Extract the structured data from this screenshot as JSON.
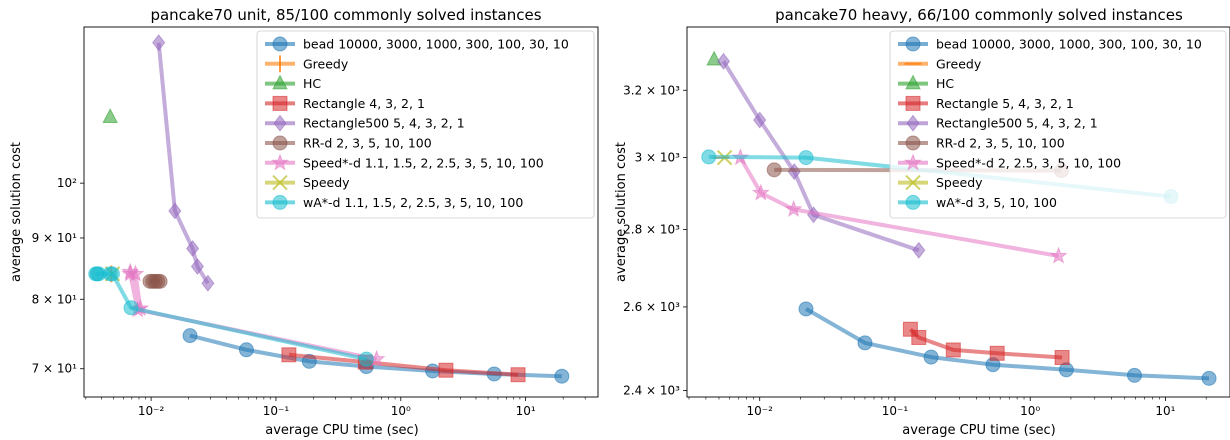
{
  "chart_data": [
    {
      "type": "line",
      "title": "pancake70 unit, 85/100 commonly solved instances",
      "xlabel": "average CPU time (sec)",
      "ylabel": "average solution cost",
      "xscale": "log",
      "yscale": "log",
      "xlim": [
        0.0029,
        38
      ],
      "ylim": [
        66.3,
        135
      ],
      "xticks": [
        {
          "v": 0.01,
          "label": "10⁻²"
        },
        {
          "v": 0.1,
          "label": "10⁻¹"
        },
        {
          "v": 1,
          "label": "10⁰"
        },
        {
          "v": 10,
          "label": "10¹"
        }
      ],
      "yticks": [
        {
          "v": 70,
          "label": "7 × 10¹"
        },
        {
          "v": 80,
          "label": "8 × 10¹"
        },
        {
          "v": 90,
          "label": "9 × 10¹"
        },
        {
          "v": 100,
          "label": "10²"
        }
      ],
      "legend_position": "top-right",
      "series": [
        {
          "name": "bead 10000, 3000, 1000, 300, 100, 30, 10",
          "color": "#1f77b4",
          "marker": "circle",
          "x": [
            0.0205,
            0.058,
            0.185,
            0.53,
            1.8,
            5.6,
            19.5
          ],
          "y": [
            74.6,
            72.6,
            71.0,
            70.3,
            69.7,
            69.3,
            69.0
          ]
        },
        {
          "name": "Greedy",
          "color": "#ff7f0e",
          "marker": "vline",
          "x": [
            0.0048
          ],
          "y": [
            84.0
          ]
        },
        {
          "name": "HC",
          "color": "#2ca02c",
          "marker": "triangle",
          "x": [
            0.0047
          ],
          "y": [
            113.5
          ]
        },
        {
          "name": "Rectangle 4, 3, 2, 1",
          "color": "#d62728",
          "marker": "square",
          "x": [
            0.127,
            0.52,
            2.3,
            8.7
          ],
          "y": [
            71.9,
            70.9,
            69.8,
            69.2
          ]
        },
        {
          "name": "Rectangle500 5, 4, 3, 2, 1",
          "color": "#9467bd",
          "marker": "diamond",
          "x": [
            0.0115,
            0.0155,
            0.0215,
            0.0235,
            0.0285
          ],
          "y": [
            131.0,
            94.8,
            88.2,
            85.2,
            82.5
          ]
        },
        {
          "name": "RR-d 2, 3, 5, 10, 100",
          "color": "#8c564b",
          "marker": "circle",
          "x": [
            0.0098,
            0.0103,
            0.0108,
            0.0113,
            0.0118
          ],
          "y": [
            82.8,
            82.8,
            82.8,
            82.8,
            82.8
          ]
        },
        {
          "name": "Speed*-d 1.1, 1.5, 2, 2.5, 3, 5, 10, 100",
          "color": "#e377c2",
          "marker": "star",
          "x": [
            0.0068,
            0.0075,
            0.0082,
            0.0068,
            0.0078,
            0.64
          ],
          "y": [
            84.3,
            84.0,
            78.6,
            84.0,
            78.4,
            71.3
          ]
        },
        {
          "name": "Speedy",
          "color": "#bcbd22",
          "marker": "x",
          "x": [
            0.0049
          ],
          "y": [
            84.0
          ]
        },
        {
          "name": "wA*-d 1.1, 1.5, 2, 2.5, 3, 5, 10, 100",
          "color": "#17becf",
          "marker": "circle",
          "x": [
            0.0036,
            0.0037,
            0.0038,
            0.0047,
            0.0049,
            0.0069,
            0.53
          ],
          "y": [
            84.0,
            84.0,
            84.0,
            84.0,
            84.0,
            78.7,
            71.3
          ]
        }
      ]
    },
    {
      "type": "line",
      "title": "pancake70 heavy, 66/100 commonly solved instances",
      "xlabel": "average CPU time (sec)",
      "ylabel": "average solution cost",
      "xscale": "log",
      "yscale": "log",
      "xlim": [
        0.0029,
        30
      ],
      "ylim": [
        2385,
        3400
      ],
      "xticks": [
        {
          "v": 0.01,
          "label": "10⁻²"
        },
        {
          "v": 0.1,
          "label": "10⁻¹"
        },
        {
          "v": 1,
          "label": "10⁰"
        },
        {
          "v": 10,
          "label": "10¹"
        }
      ],
      "yticks": [
        {
          "v": 2400,
          "label": "2.4 × 10³"
        },
        {
          "v": 2600,
          "label": "2.6 × 10³"
        },
        {
          "v": 2800,
          "label": "2.8 × 10³"
        },
        {
          "v": 3000,
          "label": "3 × 10³"
        },
        {
          "v": 3200,
          "label": "3.2 × 10³"
        }
      ],
      "legend_position": "top-right",
      "series": [
        {
          "name": "bead 10000, 3000, 1000, 300, 100, 30, 10",
          "color": "#1f77b4",
          "marker": "circle",
          "x": [
            0.022,
            0.06,
            0.185,
            0.53,
            1.85,
            5.9,
            21.0
          ],
          "y": [
            2595,
            2512,
            2478,
            2460,
            2448,
            2435,
            2428
          ]
        },
        {
          "name": "Greedy",
          "color": "#ff7f0e",
          "marker": "hline",
          "x": [
            0.0052
          ],
          "y": [
            3000
          ]
        },
        {
          "name": "HC",
          "color": "#2ca02c",
          "marker": "triangle",
          "x": [
            0.0046
          ],
          "y": [
            3295
          ]
        },
        {
          "name": "Rectangle 5, 4, 3, 2, 1",
          "color": "#d62728",
          "marker": "square",
          "x": [
            0.13,
            0.15,
            0.27,
            0.57,
            1.72
          ],
          "y": [
            2545,
            2525,
            2495,
            2487,
            2477
          ]
        },
        {
          "name": "Rectangle500 5, 4, 3, 2, 1",
          "color": "#9467bd",
          "marker": "diamond",
          "x": [
            0.0054,
            0.01,
            0.018,
            0.025,
            0.15
          ],
          "y": [
            3290,
            3110,
            2960,
            2840,
            2745
          ]
        },
        {
          "name": "RR-d 2, 3, 5, 10, 100",
          "color": "#8c564b",
          "marker": "circle",
          "x": [
            0.0128,
            1.7
          ],
          "y": [
            2965,
            2963
          ]
        },
        {
          "name": "Speed*-d 2, 2.5, 3, 5, 10, 100",
          "color": "#e377c2",
          "marker": "star",
          "x": [
            0.0072,
            0.0102,
            0.0178,
            1.62
          ],
          "y": [
            3000,
            2900,
            2855,
            2730
          ]
        },
        {
          "name": "Speedy",
          "color": "#bcbd22",
          "marker": "x",
          "x": [
            0.0055
          ],
          "y": [
            3000
          ]
        },
        {
          "name": "wA*-d 3, 5, 10, 100",
          "color": "#17becf",
          "marker": "circle",
          "x": [
            0.0042,
            0.022,
            11.0
          ],
          "y": [
            3002,
            3000,
            2890
          ]
        }
      ]
    }
  ]
}
